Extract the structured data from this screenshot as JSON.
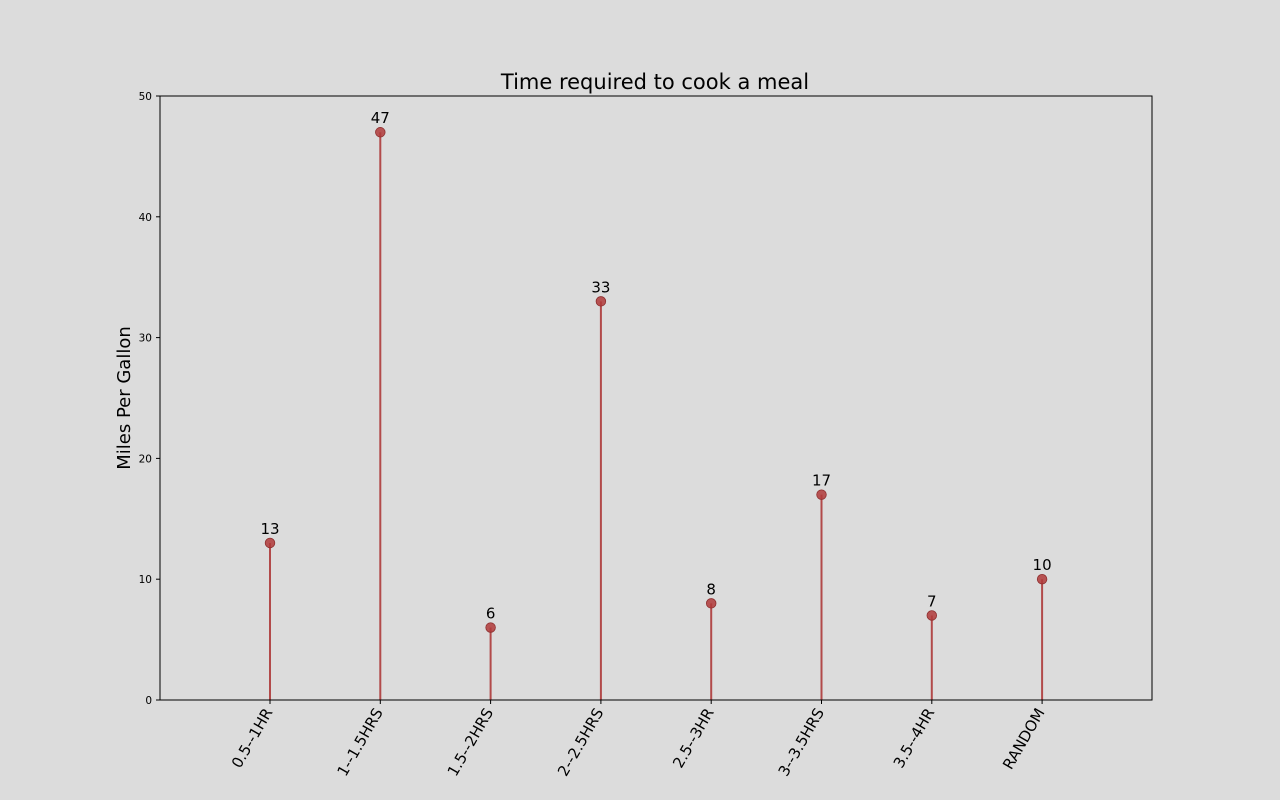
{
  "chart_data": {
    "type": "lollipop",
    "title": "Time required to cook a meal",
    "xlabel": "",
    "ylabel": "Miles Per Gallon",
    "categories": [
      "0.5--1HR",
      "1--1.5HRS",
      "1.5--2HRS",
      "2--2.5HRS",
      "2.5--3HR",
      "3--3.5HRS",
      "3.5--4HR",
      "RANDOM"
    ],
    "values": [
      13,
      47,
      6,
      33,
      8,
      17,
      7,
      10
    ],
    "ylim": [
      0,
      50
    ],
    "yticks": [
      0,
      10,
      20,
      30,
      40,
      50
    ],
    "grid": false,
    "legend": "none",
    "colors": {
      "background": "#dcdcdc",
      "stem": "#b24a4a",
      "marker": "#b03a3a",
      "axis": "#000000"
    }
  }
}
